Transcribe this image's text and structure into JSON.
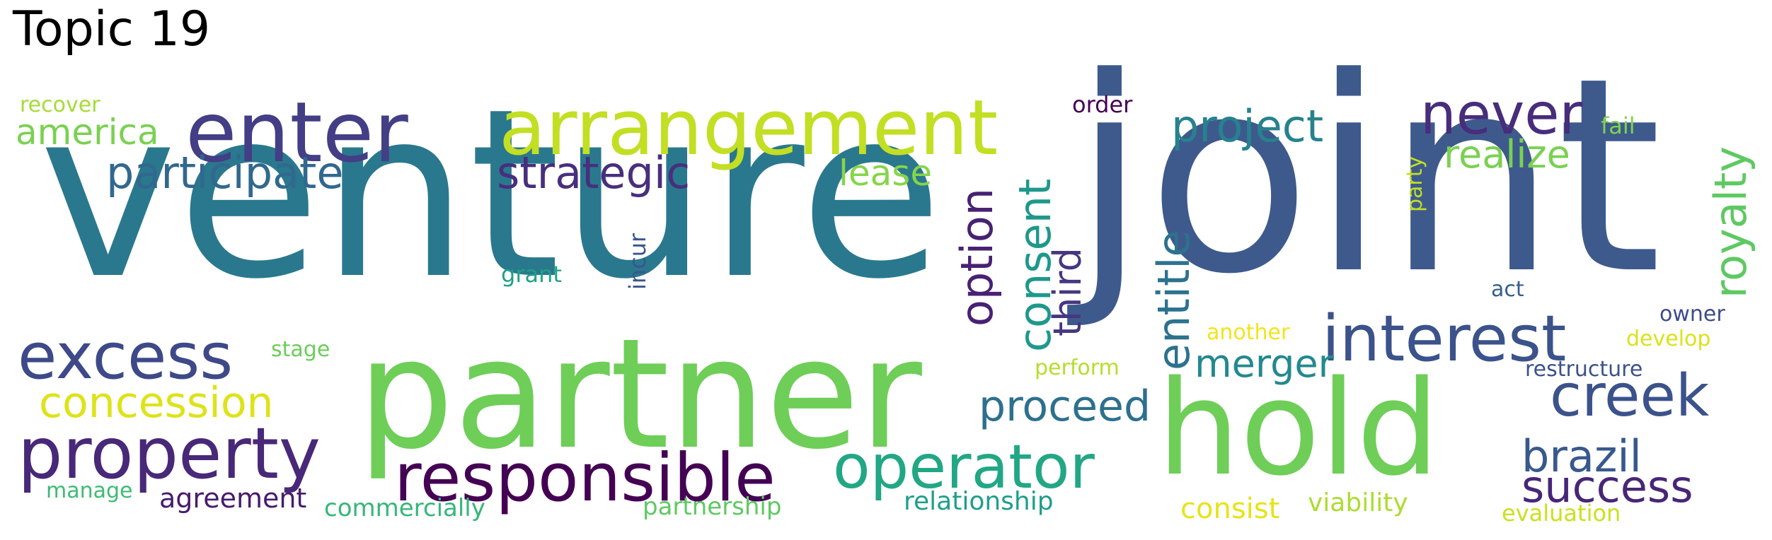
{
  "title": "Topic 19",
  "words": [
    {
      "key": "venture",
      "text": "venture",
      "color": "#2a788e"
    },
    {
      "key": "joint",
      "text": "joint",
      "color": "#3e5a8c"
    },
    {
      "key": "partner",
      "text": "partner",
      "color": "#6ece58"
    },
    {
      "key": "hold",
      "text": "hold",
      "color": "#6ece58"
    },
    {
      "key": "arrangement",
      "text": "arrangement",
      "color": "#c2df23"
    },
    {
      "key": "enter",
      "text": "enter",
      "color": "#433e85"
    },
    {
      "key": "interest",
      "text": "interest",
      "color": "#3b528b"
    },
    {
      "key": "property",
      "text": "property",
      "color": "#482878"
    },
    {
      "key": "responsible",
      "text": "responsible",
      "color": "#440154"
    },
    {
      "key": "operator",
      "text": "operator",
      "color": "#22a785"
    },
    {
      "key": "excess",
      "text": "excess",
      "color": "#3e4989"
    },
    {
      "key": "creek",
      "text": "creek",
      "color": "#3b528b"
    },
    {
      "key": "never",
      "text": "never",
      "color": "#472d7b"
    },
    {
      "key": "participate",
      "text": "participate",
      "color": "#31688e"
    },
    {
      "key": "strategic",
      "text": "strategic",
      "color": "#472f7d"
    },
    {
      "key": "project",
      "text": "project",
      "color": "#26828e"
    },
    {
      "key": "concession",
      "text": "concession",
      "color": "#dde318"
    },
    {
      "key": "royalty",
      "text": "royalty",
      "color": "#5ec962"
    },
    {
      "key": "entitle",
      "text": "entitle",
      "color": "#2c728e"
    },
    {
      "key": "consent",
      "text": "consent",
      "color": "#1f988b"
    },
    {
      "key": "option",
      "text": "option",
      "color": "#482173"
    },
    {
      "key": "proceed",
      "text": "proceed",
      "color": "#2d708e"
    },
    {
      "key": "brazil",
      "text": "brazil",
      "color": "#38598c"
    },
    {
      "key": "success",
      "text": "success",
      "color": "#482677"
    },
    {
      "key": "america",
      "text": "america",
      "color": "#7ad151"
    },
    {
      "key": "realize",
      "text": "realize",
      "color": "#7ad151"
    },
    {
      "key": "merger",
      "text": "merger",
      "color": "#23898e"
    },
    {
      "key": "third",
      "text": "third",
      "color": "#453781"
    },
    {
      "key": "lease",
      "text": "lease",
      "color": "#86d549"
    },
    {
      "key": "agreement",
      "text": "agreement",
      "color": "#481b6d"
    },
    {
      "key": "relationship",
      "text": "relationship",
      "color": "#1f9e89"
    },
    {
      "key": "consist",
      "text": "consist",
      "color": "#e5e419"
    },
    {
      "key": "viability",
      "text": "viability",
      "color": "#addc30"
    },
    {
      "key": "partnership",
      "text": "partnership",
      "color": "#5ec962"
    },
    {
      "key": "commercially",
      "text": "commercially",
      "color": "#35b779"
    },
    {
      "key": "evaluation",
      "text": "evaluation",
      "color": "#cae11f"
    },
    {
      "key": "restructure",
      "text": "restructure",
      "color": "#3b528b"
    },
    {
      "key": "develop",
      "text": "develop",
      "color": "#dae319"
    },
    {
      "key": "another",
      "text": "another",
      "color": "#f1e51d"
    },
    {
      "key": "perform",
      "text": "perform",
      "color": "#b5de2b"
    },
    {
      "key": "owner",
      "text": "owner",
      "color": "#3e4c8a"
    },
    {
      "key": "act",
      "text": "act",
      "color": "#355f8d"
    },
    {
      "key": "order",
      "text": "order",
      "color": "#440154"
    },
    {
      "key": "recover",
      "text": "recover",
      "color": "#a5db36"
    },
    {
      "key": "fail",
      "text": "fail",
      "color": "#7fd34e"
    },
    {
      "key": "party",
      "text": "party",
      "color": "#c0df25"
    },
    {
      "key": "grant",
      "text": "grant",
      "color": "#1fa088"
    },
    {
      "key": "incur",
      "text": "incur",
      "color": "#39568c"
    },
    {
      "key": "stage",
      "text": "stage",
      "color": "#6ccd5a"
    },
    {
      "key": "manage",
      "text": "manage",
      "color": "#3dbc74"
    }
  ]
}
